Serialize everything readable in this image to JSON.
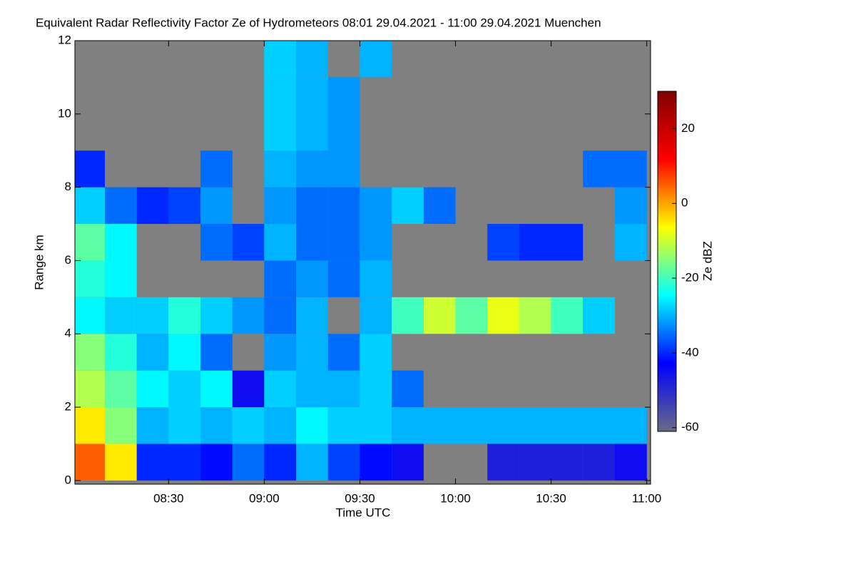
{
  "chart_data": {
    "type": "heatmap",
    "title": "Equivalent Radar Reflectivity Factor Ze of Hydrometeors   08:01 29.04.2021 - 11:00 29.04.2021 Muenchen",
    "x_label": "Time UTC",
    "y_label": "Range km",
    "colorbar_label": "Ze dBZ",
    "background": "#808080",
    "colormap": [
      "#6a6a86",
      "#0000ff",
      "#00ffff",
      "#ffff00",
      "#ff0000",
      "#800000"
    ],
    "xlim": [
      8.01,
      11.02
    ],
    "ylim": [
      -0.1,
      12
    ],
    "xticks": [
      {
        "value": 8.5,
        "label": "08:30"
      },
      {
        "value": 9,
        "label": "09:00"
      },
      {
        "value": 9.5,
        "label": "09:30"
      },
      {
        "value": 10,
        "label": "10:00"
      },
      {
        "value": 10.5,
        "label": "10:30"
      },
      {
        "value": 11,
        "label": "11:00"
      }
    ],
    "yticks": [
      0,
      2,
      4,
      6,
      8,
      10,
      12
    ],
    "zlim": [
      -61,
      30
    ],
    "zticks": [
      20,
      0,
      -20,
      -40,
      -60
    ],
    "x": [
      8.083,
      8.25,
      8.417,
      8.583,
      8.75,
      8.917,
      9.083,
      9.25,
      9.417,
      9.583,
      9.75,
      9.917,
      10.083,
      10.25,
      10.417,
      10.583,
      10.75,
      10.917
    ],
    "y": [
      0.5,
      1.5,
      2.5,
      3.5,
      4.5,
      5.5,
      6.5,
      7.5,
      8.5,
      9.5,
      10.5,
      11.5
    ],
    "z": [
      [
        5,
        -5,
        -40,
        -40,
        -42,
        -35,
        -40,
        -30,
        -38,
        -42,
        -45,
        null,
        null,
        -48,
        -48,
        -48,
        -48,
        -45
      ],
      [
        -5,
        -15,
        -30,
        -28,
        -30,
        -28,
        -30,
        -25,
        -28,
        -28,
        -30,
        -30,
        -30,
        -30,
        -30,
        -30,
        -30,
        -30
      ],
      [
        -12,
        -18,
        -25,
        -28,
        -25,
        -45,
        -28,
        -30,
        -30,
        -28,
        -35,
        null,
        null,
        null,
        null,
        null,
        null,
        null
      ],
      [
        -15,
        -22,
        -30,
        -25,
        -35,
        null,
        -32,
        -30,
        -35,
        -28,
        null,
        null,
        null,
        null,
        null,
        null,
        null,
        null
      ],
      [
        -25,
        -28,
        -28,
        -22,
        -28,
        -32,
        -35,
        -30,
        null,
        -30,
        -20,
        -10,
        -18,
        -8,
        -12,
        -20,
        -28,
        null
      ],
      [
        -22,
        -25,
        null,
        null,
        null,
        null,
        -35,
        -32,
        -35,
        -30,
        null,
        null,
        null,
        null,
        null,
        null,
        null,
        null
      ],
      [
        -18,
        -25,
        null,
        null,
        -35,
        -38,
        -30,
        -35,
        -35,
        -32,
        null,
        null,
        null,
        -38,
        -40,
        -40,
        null,
        -30
      ],
      [
        -28,
        -35,
        -40,
        -38,
        -32,
        null,
        -32,
        -35,
        -35,
        -32,
        -28,
        -35,
        null,
        null,
        null,
        null,
        null,
        -32
      ],
      [
        -40,
        null,
        null,
        null,
        -35,
        null,
        -30,
        -32,
        -32,
        null,
        null,
        null,
        null,
        null,
        null,
        null,
        -35,
        -35
      ],
      [
        null,
        null,
        null,
        null,
        null,
        null,
        -28,
        -30,
        -32,
        null,
        null,
        null,
        null,
        null,
        null,
        null,
        null,
        null
      ],
      [
        null,
        null,
        null,
        null,
        null,
        null,
        -28,
        -30,
        -32,
        null,
        null,
        null,
        null,
        null,
        null,
        null,
        null,
        null
      ],
      [
        null,
        null,
        null,
        null,
        null,
        null,
        -28,
        -30,
        null,
        -30,
        null,
        null,
        null,
        null,
        null,
        null,
        null,
        null
      ]
    ]
  }
}
